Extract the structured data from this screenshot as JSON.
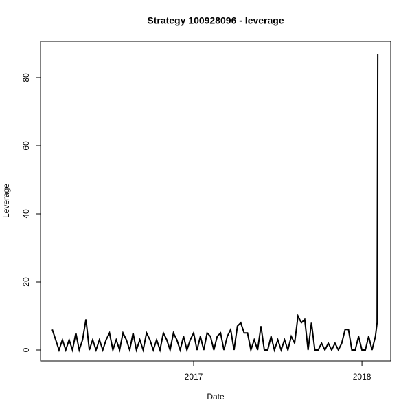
{
  "chart_data": {
    "type": "line",
    "title": "Strategy 100928096 - leverage",
    "x_label": "Date",
    "y_label": "Leverage",
    "x": [
      2016.16,
      2016.18,
      2016.2,
      2016.22,
      2016.24,
      2016.26,
      2016.28,
      2016.3,
      2016.32,
      2016.34,
      2016.36,
      2016.38,
      2016.4,
      2016.42,
      2016.44,
      2016.46,
      2016.48,
      2016.5,
      2016.52,
      2016.54,
      2016.56,
      2016.58,
      2016.6,
      2016.62,
      2016.64,
      2016.66,
      2016.68,
      2016.7,
      2016.72,
      2016.74,
      2016.76,
      2016.78,
      2016.8,
      2016.82,
      2016.84,
      2016.86,
      2016.88,
      2016.9,
      2016.92,
      2016.94,
      2016.96,
      2016.98,
      2017.0,
      2017.02,
      2017.04,
      2017.06,
      2017.08,
      2017.1,
      2017.12,
      2017.14,
      2017.16,
      2017.18,
      2017.2,
      2017.22,
      2017.24,
      2017.26,
      2017.28,
      2017.3,
      2017.32,
      2017.34,
      2017.36,
      2017.38,
      2017.4,
      2017.42,
      2017.44,
      2017.46,
      2017.48,
      2017.5,
      2017.52,
      2017.54,
      2017.56,
      2017.58,
      2017.6,
      2017.62,
      2017.64,
      2017.66,
      2017.68,
      2017.7,
      2017.72,
      2017.74,
      2017.76,
      2017.78,
      2017.8,
      2017.82,
      2017.84,
      2017.86,
      2017.88,
      2017.9,
      2017.92,
      2017.94,
      2017.96,
      2017.98,
      2018.0,
      2018.02,
      2018.04,
      2018.06,
      2018.08,
      2018.09,
      2018.094
    ],
    "series": [
      {
        "name": "Leverage",
        "color": "#000000",
        "values": [
          6,
          3,
          0,
          3,
          0,
          3,
          0,
          5,
          0,
          3,
          9,
          0,
          3,
          0,
          3,
          0,
          3,
          5,
          0,
          3,
          0,
          5,
          3,
          0,
          5,
          0,
          3,
          0,
          5,
          3,
          0,
          3,
          0,
          5,
          3,
          0,
          5,
          3,
          0,
          4,
          0,
          3,
          5,
          0,
          4,
          0,
          5,
          4,
          0,
          4,
          5,
          0,
          4,
          6,
          0,
          7,
          8,
          5,
          5,
          0,
          3,
          0,
          7,
          0,
          0,
          4,
          0,
          3,
          0,
          3,
          0,
          4,
          2,
          10,
          8,
          9,
          0,
          8,
          0,
          0,
          2,
          0,
          2,
          0,
          2,
          0,
          2,
          6,
          6,
          0,
          0,
          4,
          0,
          0,
          4,
          0,
          4,
          8,
          87
        ]
      }
    ],
    "xlim": [
      2016.09,
      2018.171
    ],
    "xticks": [
      2017,
      2018
    ],
    "ylim": [
      -3.23,
      90.7
    ],
    "yticks": [
      0,
      20,
      40,
      60,
      80
    ]
  }
}
